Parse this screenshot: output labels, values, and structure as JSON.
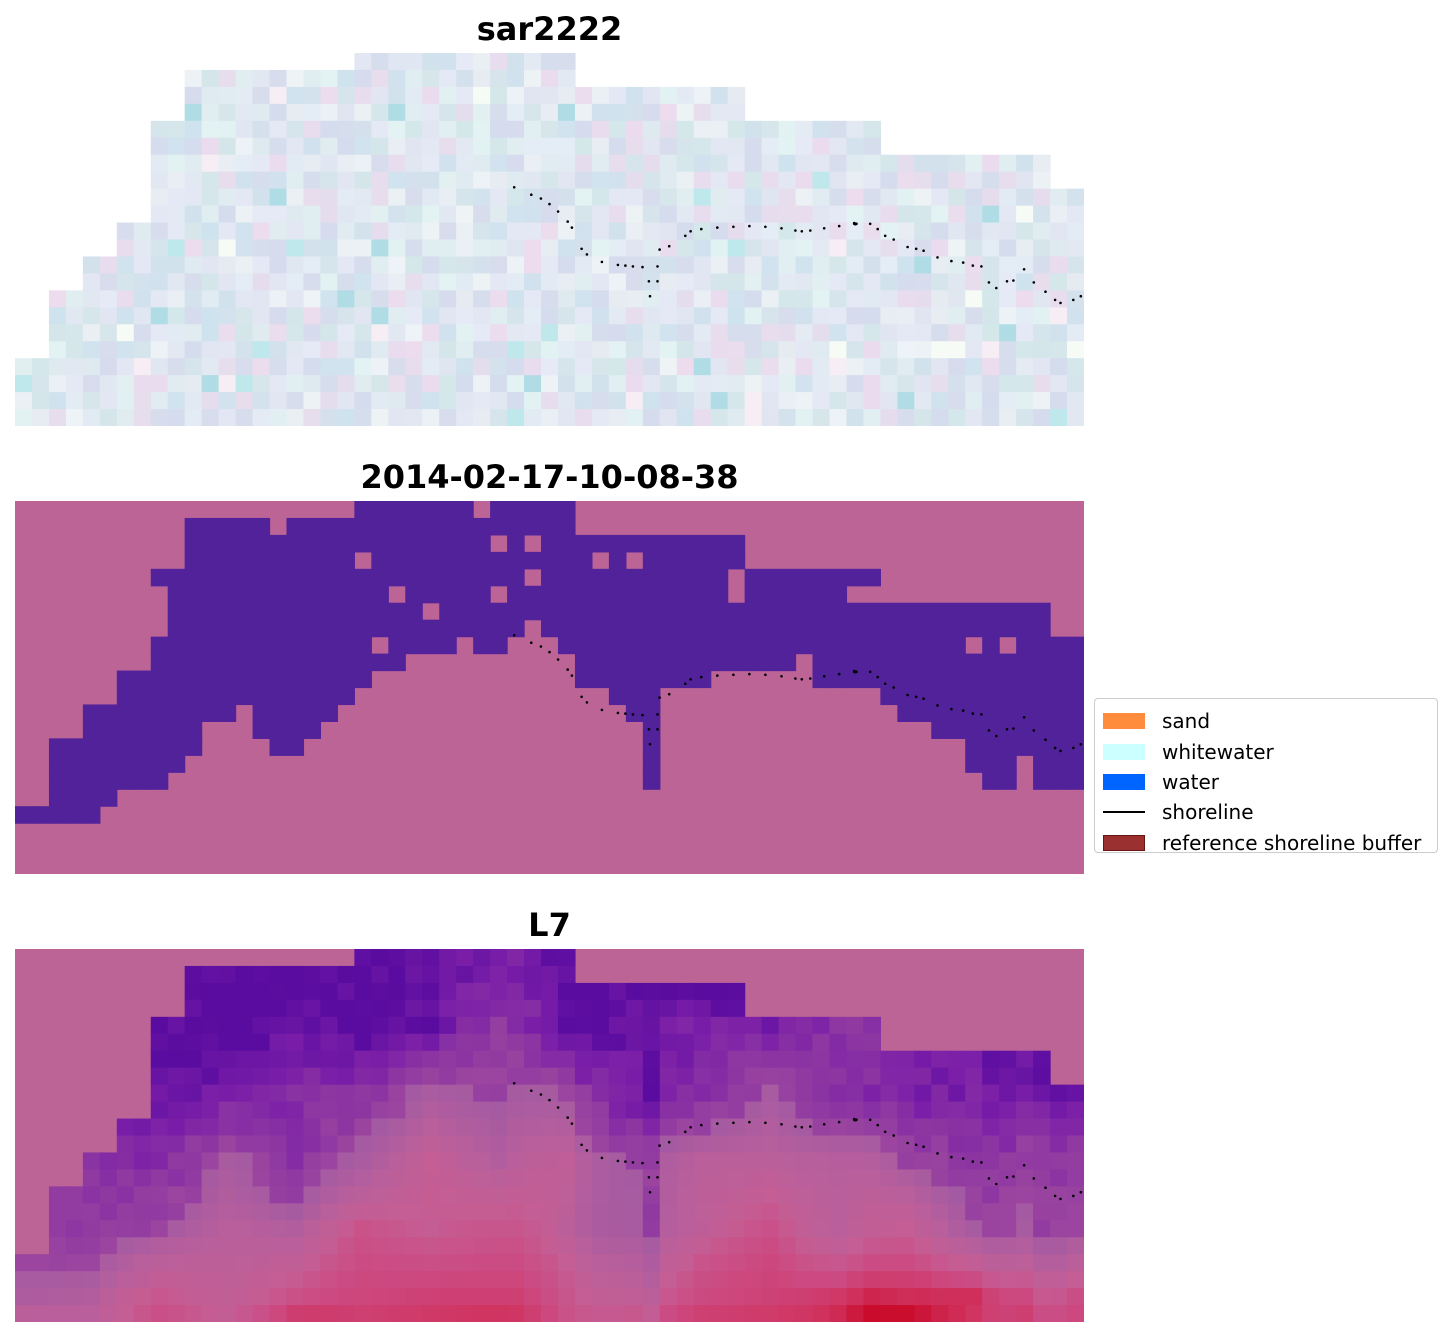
{
  "panels": [
    {
      "title": "sar2222",
      "kind": "rgb",
      "palette": {
        "base": "#dadfec",
        "tints": [
          "#cfe3ee",
          "#e6eaf6",
          "#d5dced",
          "#e3f3f3",
          "#eef4f6",
          "#ecdcee",
          "#d4e8ea",
          "#e4ecf5"
        ],
        "highlights": [
          "#bfe8ec",
          "#f6fbf6",
          "#b0dce6",
          "#f6eef4"
        ]
      }
    },
    {
      "title": "2014-02-17-10-08-38",
      "kind": "classified",
      "palette": {
        "water": "#52229a",
        "land": "#bc6496"
      }
    },
    {
      "title": "L7",
      "kind": "overlay",
      "palette": {
        "outside": "#bc6496",
        "water_scale": [
          "#5a0ca0",
          "#7a1ea8",
          "#8c35a2",
          "#9b45a0"
        ],
        "land_scale": [
          "#a45aa2",
          "#b85f9c",
          "#c45e94",
          "#cc4a82",
          "#d0335f",
          "#c8001e"
        ]
      }
    }
  ],
  "shoreline": {
    "points": [
      [
        0.467,
        0.36
      ],
      [
        0.483,
        0.38
      ],
      [
        0.492,
        0.39
      ],
      [
        0.5,
        0.405
      ],
      [
        0.508,
        0.425
      ],
      [
        0.517,
        0.452
      ],
      [
        0.521,
        0.468
      ],
      [
        0.53,
        0.525
      ],
      [
        0.535,
        0.54
      ],
      [
        0.549,
        0.56
      ],
      [
        0.564,
        0.568
      ],
      [
        0.571,
        0.57
      ],
      [
        0.578,
        0.572
      ],
      [
        0.587,
        0.574
      ],
      [
        0.593,
        0.612
      ],
      [
        0.601,
        0.612
      ],
      [
        0.594,
        0.652
      ],
      [
        0.601,
        0.572
      ],
      [
        0.603,
        0.527
      ],
      [
        0.612,
        0.518
      ],
      [
        0.627,
        0.49
      ],
      [
        0.632,
        0.478
      ],
      [
        0.642,
        0.472
      ],
      [
        0.657,
        0.468
      ],
      [
        0.672,
        0.466
      ],
      [
        0.687,
        0.464
      ],
      [
        0.702,
        0.466
      ],
      [
        0.717,
        0.47
      ],
      [
        0.73,
        0.476
      ],
      [
        0.736,
        0.478
      ],
      [
        0.744,
        0.476
      ],
      [
        0.757,
        0.47
      ],
      [
        0.771,
        0.464
      ],
      [
        0.787,
        0.458
      ],
      [
        0.785,
        0.456
      ],
      [
        0.785,
        0.458
      ],
      [
        0.786,
        0.458
      ],
      [
        0.786,
        0.458
      ],
      [
        0.787,
        0.458
      ],
      [
        0.787,
        0.458
      ],
      [
        0.786,
        0.458
      ],
      [
        0.786,
        0.458
      ],
      [
        0.786,
        0.458
      ],
      [
        0.786,
        0.458
      ],
      [
        0.786,
        0.458
      ],
      [
        0.786,
        0.458
      ],
      [
        0.786,
        0.458
      ],
      [
        0.786,
        0.458
      ],
      [
        0.787,
        0.458
      ],
      [
        0.786,
        0.458
      ],
      [
        0.786,
        0.458
      ],
      [
        0.786,
        0.458
      ],
      [
        0.786,
        0.458
      ],
      [
        0.786,
        0.458
      ],
      [
        0.786,
        0.458
      ],
      [
        0.786,
        0.458
      ],
      [
        0.786,
        0.458
      ],
      [
        0.786,
        0.458
      ],
      [
        0.786,
        0.458
      ],
      [
        0.786,
        0.458
      ],
      [
        0.786,
        0.458
      ],
      [
        0.786,
        0.458
      ],
      [
        0.786,
        0.458
      ],
      [
        0.786,
        0.458
      ],
      [
        0.786,
        0.458
      ],
      [
        0.786,
        0.458
      ],
      [
        0.786,
        0.458
      ],
      [
        0.786,
        0.458
      ],
      [
        0.786,
        0.458
      ],
      [
        0.786,
        0.458
      ],
      [
        0.786,
        0.458
      ],
      [
        0.786,
        0.458
      ],
      [
        0.786,
        0.458
      ],
      [
        0.786,
        0.458
      ],
      [
        0.786,
        0.458
      ],
      [
        0.786,
        0.458
      ],
      [
        0.786,
        0.458
      ],
      [
        0.786,
        0.458
      ],
      [
        0.786,
        0.458
      ],
      [
        0.786,
        0.458
      ],
      [
        0.786,
        0.458
      ],
      [
        0.786,
        0.458
      ],
      [
        0.786,
        0.458
      ],
      [
        0.786,
        0.458
      ],
      [
        0.786,
        0.458
      ],
      [
        0.786,
        0.458
      ],
      [
        0.786,
        0.458
      ],
      [
        0.786,
        0.458
      ],
      [
        0.786,
        0.458
      ],
      [
        0.786,
        0.458
      ],
      [
        0.786,
        0.458
      ],
      [
        0.786,
        0.458
      ],
      [
        0.786,
        0.458
      ],
      [
        0.786,
        0.458
      ],
      [
        0.786,
        0.458
      ],
      [
        0.786,
        0.458
      ],
      [
        0.786,
        0.458
      ],
      [
        0.786,
        0.458
      ],
      [
        0.786,
        0.458
      ],
      [
        0.786,
        0.458
      ],
      [
        0.786,
        0.458
      ],
      [
        0.786,
        0.458
      ],
      [
        0.786,
        0.458
      ],
      [
        0.786,
        0.458
      ],
      [
        0.786,
        0.458
      ],
      [
        0.786,
        0.458
      ],
      [
        0.786,
        0.458
      ],
      [
        0.786,
        0.458
      ],
      [
        0.786,
        0.458
      ],
      [
        0.786,
        0.458
      ],
      [
        0.786,
        0.458
      ],
      [
        0.786,
        0.458
      ],
      [
        0.786,
        0.458
      ],
      [
        0.786,
        0.458
      ],
      [
        0.786,
        0.458
      ],
      [
        0.786,
        0.458
      ],
      [
        0.786,
        0.458
      ],
      [
        0.786,
        0.458
      ],
      [
        0.786,
        0.458
      ],
      [
        0.786,
        0.458
      ],
      [
        0.786,
        0.458
      ],
      [
        0.786,
        0.458
      ],
      [
        0.786,
        0.458
      ],
      [
        0.786,
        0.458
      ],
      [
        0.786,
        0.458
      ],
      [
        0.8,
        0.458
      ],
      [
        0.807,
        0.472
      ],
      [
        0.814,
        0.49
      ],
      [
        0.822,
        0.5
      ],
      [
        0.835,
        0.52
      ],
      [
        0.843,
        0.525
      ],
      [
        0.85,
        0.53
      ],
      [
        0.863,
        0.548
      ],
      [
        0.876,
        0.558
      ],
      [
        0.887,
        0.562
      ],
      [
        0.896,
        0.57
      ],
      [
        0.904,
        0.572
      ],
      [
        0.911,
        0.615
      ],
      [
        0.918,
        0.63
      ],
      [
        0.928,
        0.612
      ],
      [
        0.934,
        0.61
      ],
      [
        0.944,
        0.58
      ],
      [
        0.953,
        0.615
      ],
      [
        0.964,
        0.64
      ],
      [
        0.973,
        0.662
      ],
      [
        0.978,
        0.67
      ],
      [
        0.99,
        0.662
      ],
      [
        0.997,
        0.652
      ]
    ]
  },
  "legend": {
    "items": [
      {
        "label": "sand",
        "type": "patch",
        "color": "#ff8c3c",
        "edge": ""
      },
      {
        "label": "whitewater",
        "type": "patch",
        "color": "#ccffff",
        "edge": ""
      },
      {
        "label": "water",
        "type": "patch",
        "color": "#0064ff",
        "edge": ""
      },
      {
        "label": "shoreline",
        "type": "line",
        "color": "#000000",
        "edge": ""
      },
      {
        "label": "reference shoreline buffer",
        "type": "patch",
        "color": "#9a3030",
        "edge": "#6a1414"
      }
    ]
  }
}
